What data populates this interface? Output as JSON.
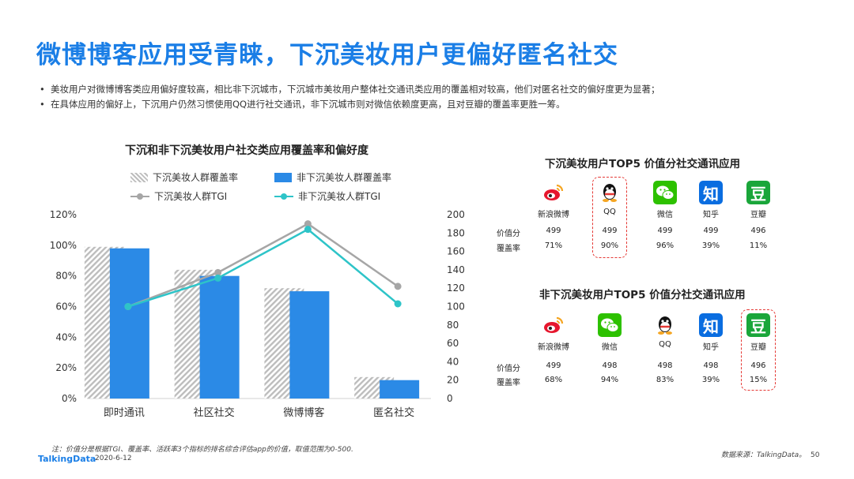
{
  "title": "微博博客应用受青睐，下沉美妆用户更偏好匿名社交",
  "bullets": [
    "美妆用户对微博博客类应用偏好度较高，相比非下沉城市，下沉城市美妆用户整体社交通讯类应用的覆盖相对较高，他们对匿名社交的偏好度更为显著；",
    "在具体应用的偏好上，下沉用户仍然习惯使用QQ进行社交通讯，非下沉城市则对微信依赖度更高，且对豆瓣的覆盖率更胜一筹。"
  ],
  "chart_data": {
    "type": "bar",
    "title": "下沉和非下沉美妆用户社交类应用覆盖率和偏好度",
    "categories": [
      "即时通讯",
      "社区社交",
      "微博博客",
      "匿名社交"
    ],
    "series": [
      {
        "name": "下沉美妆人群覆盖率",
        "kind": "bar",
        "axis": "left",
        "values": [
          99,
          84,
          72,
          14
        ],
        "color": "#bdbdbd"
      },
      {
        "name": "非下沉美妆人群覆盖率",
        "kind": "bar",
        "axis": "left",
        "values": [
          98,
          80,
          70,
          12
        ],
        "color": "#2b8ae6"
      },
      {
        "name": "下沉美妆人群TGI",
        "kind": "line",
        "axis": "right",
        "values": [
          100,
          137,
          190,
          122
        ],
        "color": "#a6a6a6"
      },
      {
        "name": "非下沉美妆人群TGI",
        "kind": "line",
        "axis": "right",
        "values": [
          100,
          131,
          184,
          103
        ],
        "color": "#2ec4c8"
      }
    ],
    "yleft": {
      "min": 0,
      "max": 120,
      "step": 20,
      "ticks": [
        "0%",
        "20%",
        "40%",
        "60%",
        "80%",
        "100%",
        "120%"
      ]
    },
    "yright": {
      "min": 0,
      "max": 200,
      "step": 20,
      "ticks": [
        "0",
        "20",
        "40",
        "60",
        "80",
        "100",
        "120",
        "140",
        "160",
        "180",
        "200"
      ]
    },
    "grid": false,
    "legend": "top"
  },
  "panels": [
    {
      "title": "下沉美妆用户TOP5 价值分社交通讯应用",
      "row_labels": [
        "价值分",
        "覆盖率"
      ],
      "apps": [
        {
          "name": "新浪微博",
          "icon": "weibo-icon",
          "score": "499",
          "coverage": "71%"
        },
        {
          "name": "QQ",
          "icon": "qq-icon",
          "score": "499",
          "coverage": "90%"
        },
        {
          "name": "微信",
          "icon": "wechat-icon",
          "score": "499",
          "coverage": "96%"
        },
        {
          "name": "知乎",
          "icon": "zhihu-icon",
          "glyph": "知",
          "score": "499",
          "coverage": "39%"
        },
        {
          "name": "豆瓣",
          "icon": "douban-icon",
          "glyph": "豆",
          "score": "496",
          "coverage": "11%"
        }
      ],
      "highlight": 1
    },
    {
      "title": "非下沉美妆用户TOP5 价值分社交通讯应用",
      "row_labels": [
        "价值分",
        "覆盖率"
      ],
      "apps": [
        {
          "name": "新浪微博",
          "icon": "weibo-icon",
          "score": "499",
          "coverage": "68%"
        },
        {
          "name": "微信",
          "icon": "wechat-icon",
          "score": "498",
          "coverage": "94%"
        },
        {
          "name": "QQ",
          "icon": "qq-icon",
          "score": "498",
          "coverage": "83%"
        },
        {
          "name": "知乎",
          "icon": "zhihu-icon",
          "glyph": "知",
          "score": "498",
          "coverage": "39%"
        },
        {
          "name": "豆瓣",
          "icon": "douban-icon",
          "glyph": "豆",
          "score": "496",
          "coverage": "15%"
        }
      ],
      "highlight": 4
    }
  ],
  "footnote": "注：价值分是根据TGI、覆盖率、活跃率3个指标的排名综合评估app的价值，取值范围为0-500.",
  "logo": "TalkingData",
  "date": "2020-6-12",
  "source": "数据来源：TalkingData。",
  "page_number": "50"
}
